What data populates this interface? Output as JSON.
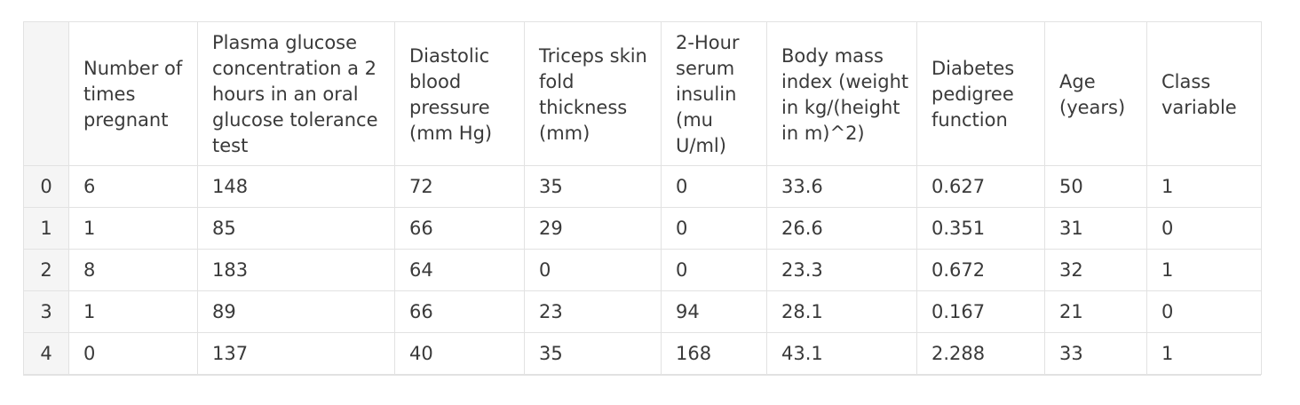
{
  "table": {
    "columns": [
      "Number of times pregnant",
      "Plasma glucose concentration a 2 hours in an oral glucose tolerance test",
      "Diastolic blood pressure (mm Hg)",
      "Triceps skin fold thickness (mm)",
      "2-Hour serum insulin (mu U/ml)",
      "Body mass index (weight in kg/(height in m)^2)",
      "Diabetes pedigree function",
      "Age (years)",
      "Class variable"
    ],
    "rows": [
      {
        "index": "0",
        "cells": [
          "6",
          "148",
          "72",
          "35",
          "0",
          "33.6",
          "0.627",
          "50",
          "1"
        ]
      },
      {
        "index": "1",
        "cells": [
          "1",
          "85",
          "66",
          "29",
          "0",
          "26.6",
          "0.351",
          "31",
          "0"
        ]
      },
      {
        "index": "2",
        "cells": [
          "8",
          "183",
          "64",
          "0",
          "0",
          "23.3",
          "0.672",
          "32",
          "1"
        ]
      },
      {
        "index": "3",
        "cells": [
          "1",
          "89",
          "66",
          "23",
          "94",
          "28.1",
          "0.167",
          "21",
          "0"
        ]
      },
      {
        "index": "4",
        "cells": [
          "0",
          "137",
          "40",
          "35",
          "168",
          "43.1",
          "2.288",
          "33",
          "1"
        ]
      }
    ]
  }
}
